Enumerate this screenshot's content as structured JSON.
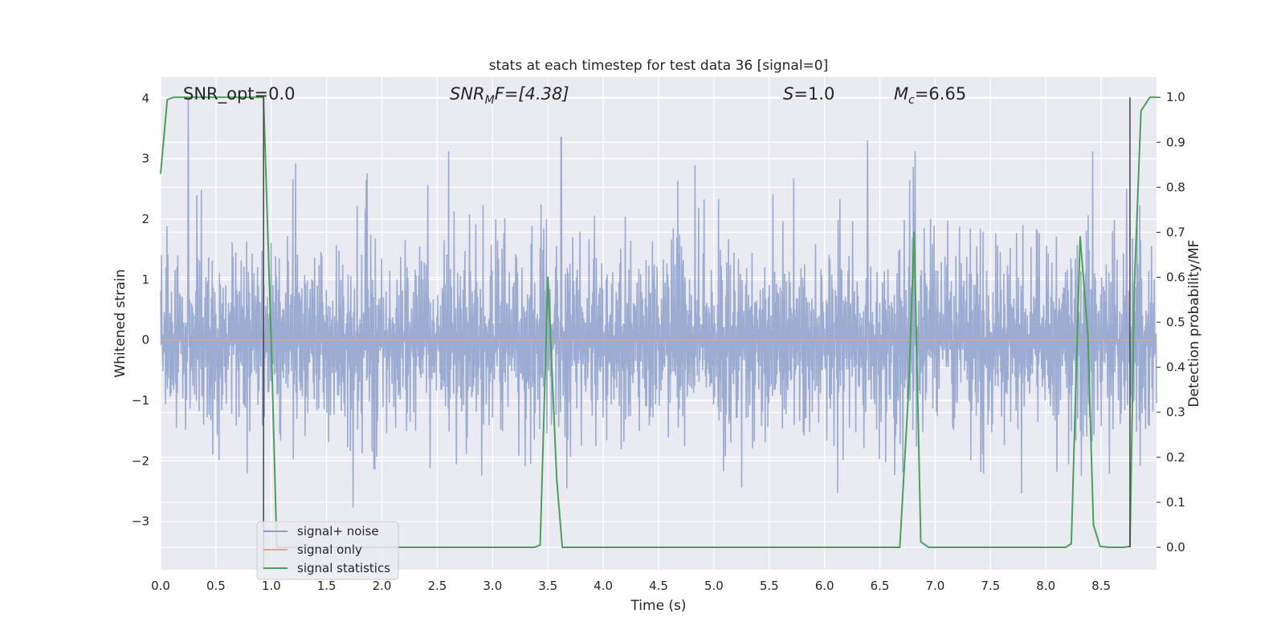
{
  "chart_data": {
    "type": "line",
    "title": "stats at each timestep for test data 36 [signal=0]",
    "xlabel": "Time (s)",
    "ylabel": "Whitened strain",
    "y2label": "Detection probability/MF",
    "xlim": [
      0.0,
      9.0
    ],
    "ylim": [
      -3.8,
      4.35
    ],
    "y2lim": [
      -0.05,
      1.045
    ],
    "x_ticks": [
      "0.0",
      "0.5",
      "1.0",
      "1.5",
      "2.0",
      "2.5",
      "3.0",
      "3.5",
      "4.0",
      "4.5",
      "5.0",
      "5.5",
      "6.0",
      "6.5",
      "7.0",
      "7.5",
      "8.0",
      "8.5"
    ],
    "y_ticks": [
      "4",
      "3",
      "2",
      "1",
      "0",
      "−1",
      "−2",
      "−3"
    ],
    "y2_ticks": [
      "1.0",
      "0.9",
      "0.8",
      "0.7",
      "0.6",
      "0.5",
      "0.4",
      "0.3",
      "0.2",
      "0.1",
      "0.0"
    ],
    "grid": true,
    "legend_placement": "lower-left",
    "colors": {
      "signal_noise": "#8da0cb",
      "signal_only": "#e3a58a",
      "signal_statistics": "#4aa05a",
      "marker_line": "#444444",
      "plot_bg": "#eaeaf2"
    },
    "annotations": [
      {
        "base": "SNR_opt=0.0",
        "sub": "",
        "tail": ""
      },
      {
        "base": "SNR",
        "sub": "M",
        "tail": "F=[4.38]"
      },
      {
        "base": "S",
        "sub": "",
        "tail": "=1.0"
      },
      {
        "base": "M",
        "sub": "c",
        "tail": "=6.65"
      }
    ],
    "series": [
      {
        "name": "signal+ noise",
        "type": "noise",
        "amplitude_typical": 1.4,
        "amplitude_peak": 4.0,
        "spikes": [
          {
            "x": 0.25,
            "y": 4.0
          },
          {
            "x": 3.62,
            "y": 3.35
          },
          {
            "x": 6.39,
            "y": 3.3
          },
          {
            "x": 8.73,
            "y": 2.5
          }
        ]
      },
      {
        "name": "signal only",
        "type": "flat",
        "value": 0.0
      },
      {
        "name": "signal statistics",
        "axis": "right",
        "x": [
          0.0,
          0.06,
          0.12,
          0.93,
          1.0,
          1.05,
          3.38,
          3.43,
          3.5,
          3.58,
          3.63,
          6.68,
          6.76,
          6.81,
          6.87,
          6.94,
          8.18,
          8.23,
          8.31,
          8.38,
          8.43,
          8.49,
          8.57,
          8.7,
          8.76,
          8.8,
          8.86,
          8.94,
          9.0
        ],
        "y": [
          0.83,
          0.995,
          1.0,
          1.0,
          0.45,
          0.0,
          0.0,
          0.005,
          0.6,
          0.15,
          0.0,
          0.0,
          0.35,
          0.7,
          0.012,
          0.0,
          0.0,
          0.008,
          0.69,
          0.47,
          0.05,
          0.002,
          0.0,
          0.0,
          0.002,
          0.58,
          0.97,
          1.0,
          1.0
        ]
      }
    ],
    "vertical_markers": [
      {
        "x": 0.93,
        "y_from": -0.05,
        "y_to": 1.0
      },
      {
        "x": 8.76,
        "y_from": 0.0,
        "y_to": 1.0
      }
    ]
  }
}
